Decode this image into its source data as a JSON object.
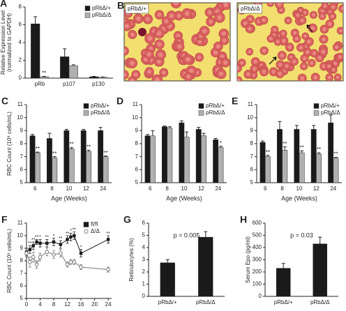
{
  "chart_data": [
    {
      "type": "bar",
      "label": "A",
      "ylabel": [
        "Relative Expression Level",
        "(normalized to GAPDH)"
      ],
      "categories": [
        "pRb",
        "p107",
        "p130"
      ],
      "ylim": [
        0,
        8
      ],
      "yticks": [
        0,
        2,
        4,
        6,
        8
      ],
      "legend": "top-right",
      "series": [
        {
          "name": "pRbΔ/+",
          "color": "#1a1a1a",
          "values": [
            6.1,
            2.4,
            0.15
          ],
          "errors": [
            0.8,
            0.9,
            0.05
          ]
        },
        {
          "name": "pRbΔ/Δ",
          "color": "#b0b0b0",
          "values": [
            0.15,
            1.4,
            0.1
          ],
          "errors": [
            0.05,
            0.1,
            0.03
          ],
          "significance": [
            "**",
            null,
            null
          ]
        }
      ]
    },
    {
      "type": "bar",
      "label": "C",
      "ylabel": [
        "RBC Count (10⁹ cells/mL)"
      ],
      "xlabel": "Age (Weeks)",
      "categories": [
        "6",
        "8",
        "10",
        "12",
        "24"
      ],
      "ylim": [
        5,
        11
      ],
      "yticks": [
        5,
        6,
        7,
        8,
        9,
        10,
        11
      ],
      "legend": "top-right",
      "series": [
        {
          "name": "pRbΔ/+",
          "color": "#1a1a1a",
          "values": [
            8.6,
            8.4,
            9.0,
            9.0,
            9.0
          ],
          "errors": [
            0.1,
            0.4,
            0.1,
            0.1,
            0.25
          ]
        },
        {
          "name": "pRbΔ/Δ",
          "color": "#b0b0b0",
          "values": [
            7.3,
            6.9,
            7.6,
            7.4,
            7.0
          ],
          "errors": [
            0.05,
            0.1,
            0.1,
            0.1,
            0.05
          ],
          "significance": [
            "**",
            "**",
            "**",
            "**",
            "**"
          ]
        }
      ]
    },
    {
      "type": "bar",
      "label": "D",
      "xlabel": "Age (Weeks)",
      "categories": [
        "6",
        "8",
        "10",
        "12",
        "24"
      ],
      "ylim": [
        5,
        11
      ],
      "yticks": [
        5,
        6,
        7,
        8,
        9,
        10,
        11
      ],
      "legend": "top-right",
      "series": [
        {
          "name": "pRbΔ/+",
          "color": "#1a1a1a",
          "values": [
            8.6,
            9.3,
            9.6,
            9.1,
            8.3
          ],
          "errors": [
            0.1,
            0.05,
            0.15,
            0.15,
            0.1
          ]
        },
        {
          "name": "pRbΔ/Δ",
          "color": "#b0b0b0",
          "values": [
            8.6,
            9.2,
            8.5,
            8.6,
            7.7
          ],
          "errors": [
            0.4,
            0.1,
            0.4,
            0.2,
            0.1
          ],
          "significance": [
            null,
            null,
            null,
            null,
            "*"
          ]
        }
      ]
    },
    {
      "type": "bar",
      "label": "E",
      "xlabel": "Age (Weeks)",
      "categories": [
        "6",
        "8",
        "10",
        "12",
        "24"
      ],
      "ylim": [
        5,
        11
      ],
      "yticks": [
        5,
        6,
        7,
        8,
        9,
        10,
        11
      ],
      "legend": "top-right",
      "series": [
        {
          "name": "pRbΔ/+",
          "color": "#1a1a1a",
          "values": [
            8.1,
            9.1,
            9.1,
            9.1,
            9.6
          ],
          "errors": [
            0.1,
            0.6,
            0.3,
            0.3,
            0.6
          ]
        },
        {
          "name": "pRbΔ/Δ",
          "color": "#b0b0b0",
          "values": [
            7.0,
            7.5,
            7.3,
            7.2,
            6.9
          ],
          "errors": [
            0.1,
            0.25,
            0.15,
            0.1,
            0.05
          ],
          "significance": [
            "**",
            "**",
            "**",
            "**",
            "**"
          ]
        }
      ]
    },
    {
      "type": "line",
      "label": "F",
      "ylabel": [
        "RBC Count (10⁹ cells/mL)"
      ],
      "xlabel": "Weeks post pIpC",
      "x": [
        0,
        1,
        2,
        3,
        4,
        6,
        8,
        10,
        12,
        13,
        14,
        16,
        24
      ],
      "xlim": [
        0,
        25
      ],
      "xticks": [
        0,
        4,
        8,
        12,
        16,
        20,
        24
      ],
      "ylim": [
        5,
        11
      ],
      "yticks": [
        5,
        6,
        7,
        8,
        9,
        10,
        11
      ],
      "legend": "top-right",
      "series": [
        {
          "name": "fl/fl",
          "color": "#1a1a1a",
          "values": [
            8.7,
            8.9,
            9.2,
            9.5,
            9.4,
            9.4,
            9.5,
            9.3,
            9.7,
            9.9,
            10.0,
            8.6,
            9.7
          ],
          "errors": [
            0.3,
            0.3,
            0.3,
            0.2,
            0.3,
            0.3,
            0.3,
            0.3,
            0.3,
            0.3,
            0.3,
            0.3,
            0.3
          ],
          "significance": [
            null,
            "**",
            "**",
            "**",
            "*",
            "**",
            "*",
            "**",
            "**",
            "*",
            "**",
            "*",
            "**"
          ]
        },
        {
          "name": "Δ/Δ",
          "color": "#7a7a7a",
          "values": [
            8.6,
            7.9,
            8.3,
            7.7,
            8.3,
            8.7,
            8.5,
            8.6,
            7.7,
            7.9,
            7.9,
            7.5,
            7.3
          ],
          "errors": [
            0.3,
            0.4,
            0.4,
            0.3,
            0.3,
            0.3,
            0.3,
            0.3,
            0.2,
            0.2,
            0.2,
            0.2,
            0.2
          ]
        }
      ]
    },
    {
      "type": "bar",
      "label": "G",
      "ylabel": [
        "Reticulocytes (%)"
      ],
      "annotation": "p = 0.005",
      "categories": [
        "pRbΔ/+",
        "pRbΔ/Δ"
      ],
      "values": [
        2.75,
        4.85
      ],
      "errors": [
        0.25,
        0.45
      ],
      "color": "#1a1a1a",
      "ylim": [
        0,
        6
      ],
      "yticks": [
        0,
        1,
        2,
        3,
        4,
        5,
        6
      ]
    },
    {
      "type": "bar",
      "label": "H",
      "ylabel": [
        "Serum Epo (pg/ml)"
      ],
      "annotation": "p = 0.03",
      "categories": [
        "pRbΔ/+",
        "pRbΔ/Δ"
      ],
      "values": [
        230,
        430
      ],
      "errors": [
        40,
        55
      ],
      "color": "#1a1a1a",
      "ylim": [
        0,
        600
      ],
      "yticks": [
        0,
        100,
        200,
        300,
        400,
        500,
        600
      ]
    }
  ],
  "images": {
    "label": "B",
    "captions": [
      "pRbΔ/+",
      "pRbΔ/Δ"
    ]
  }
}
